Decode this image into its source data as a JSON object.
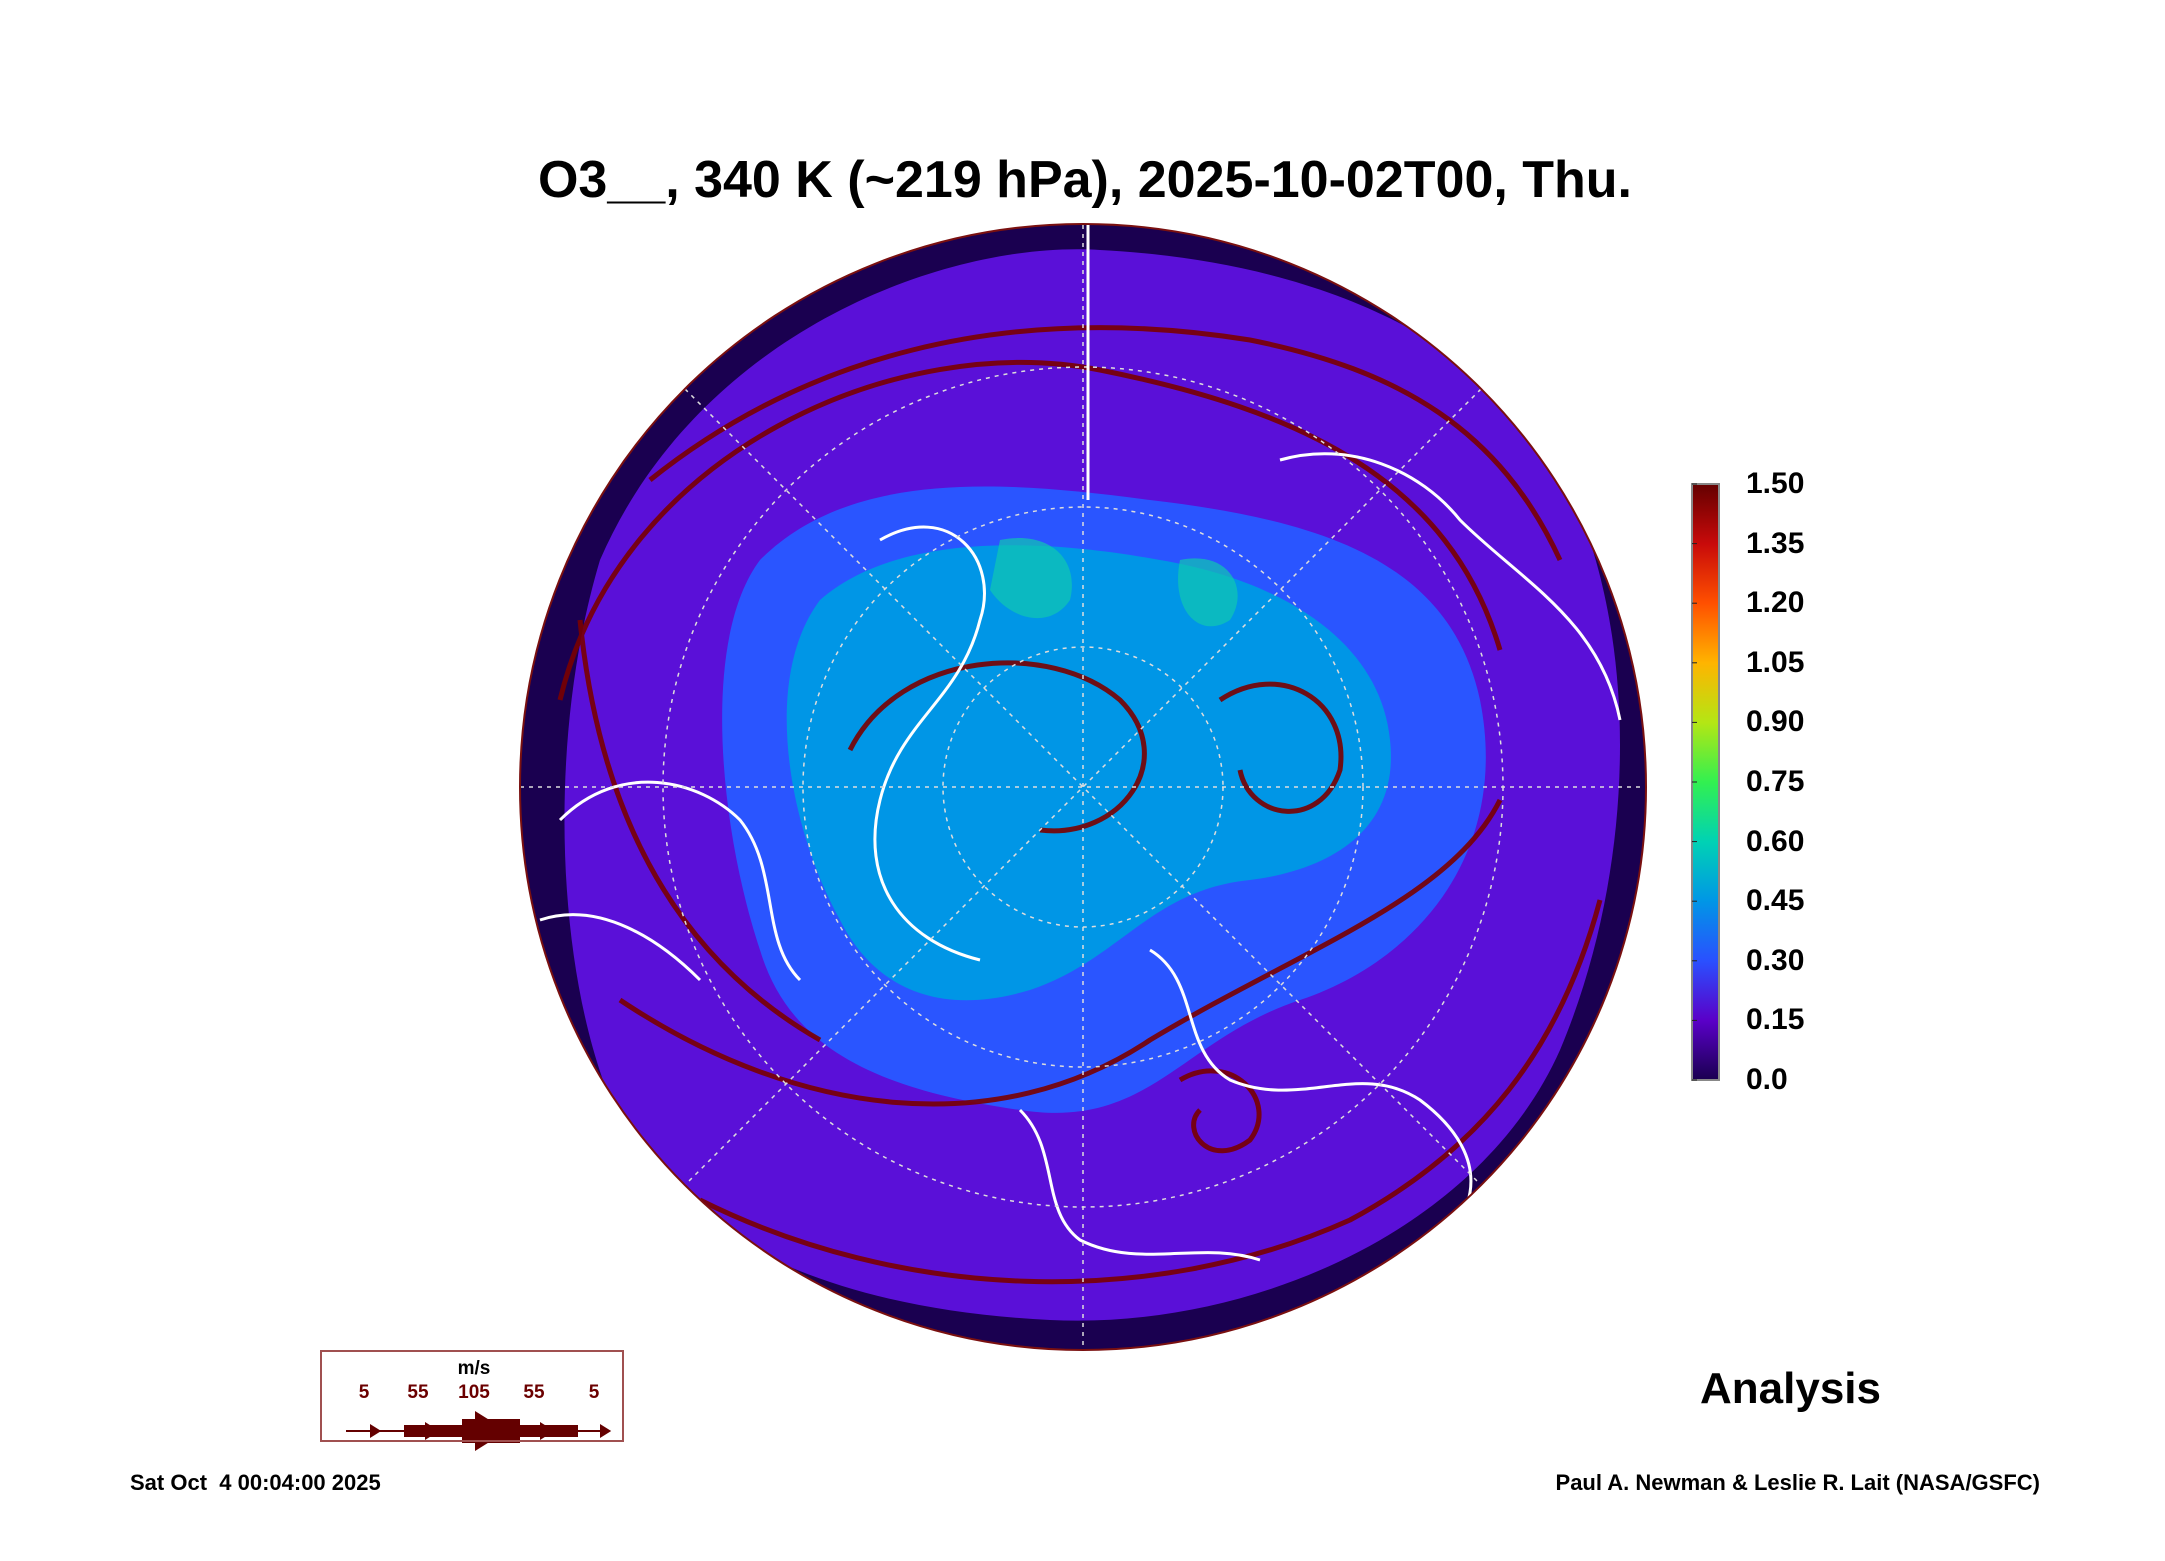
{
  "chart_data": {
    "type": "heatmap",
    "title": "O3__, 340 K (~219 hPa), 2025-10-02T00, Thu.",
    "projection": "north polar stereographic",
    "variable": "O3",
    "colorbar": {
      "min": 0.0,
      "max": 1.5,
      "ticks": [
        "1.50",
        "1.35",
        "1.20",
        "1.05",
        "0.90",
        "0.75",
        "0.60",
        "0.45",
        "0.30",
        "0.15",
        "0.0"
      ],
      "colors": [
        "#1a0050",
        "#5a00c8",
        "#2a50ff",
        "#0096e6",
        "#00d2b4",
        "#32f050",
        "#b4e614",
        "#ffb400",
        "#ff5000",
        "#c80a0a",
        "#640000"
      ]
    },
    "wind_legend": {
      "unit": "m/s",
      "labels": [
        "5",
        "55",
        "105",
        "55",
        "5"
      ],
      "color": "#640000"
    },
    "label": "Analysis"
  },
  "footer": {
    "date": "Sat Oct  4 00:04:00 2025",
    "credit": "Paul A. Newman & Leslie R. Lait (NASA/GSFC)"
  }
}
